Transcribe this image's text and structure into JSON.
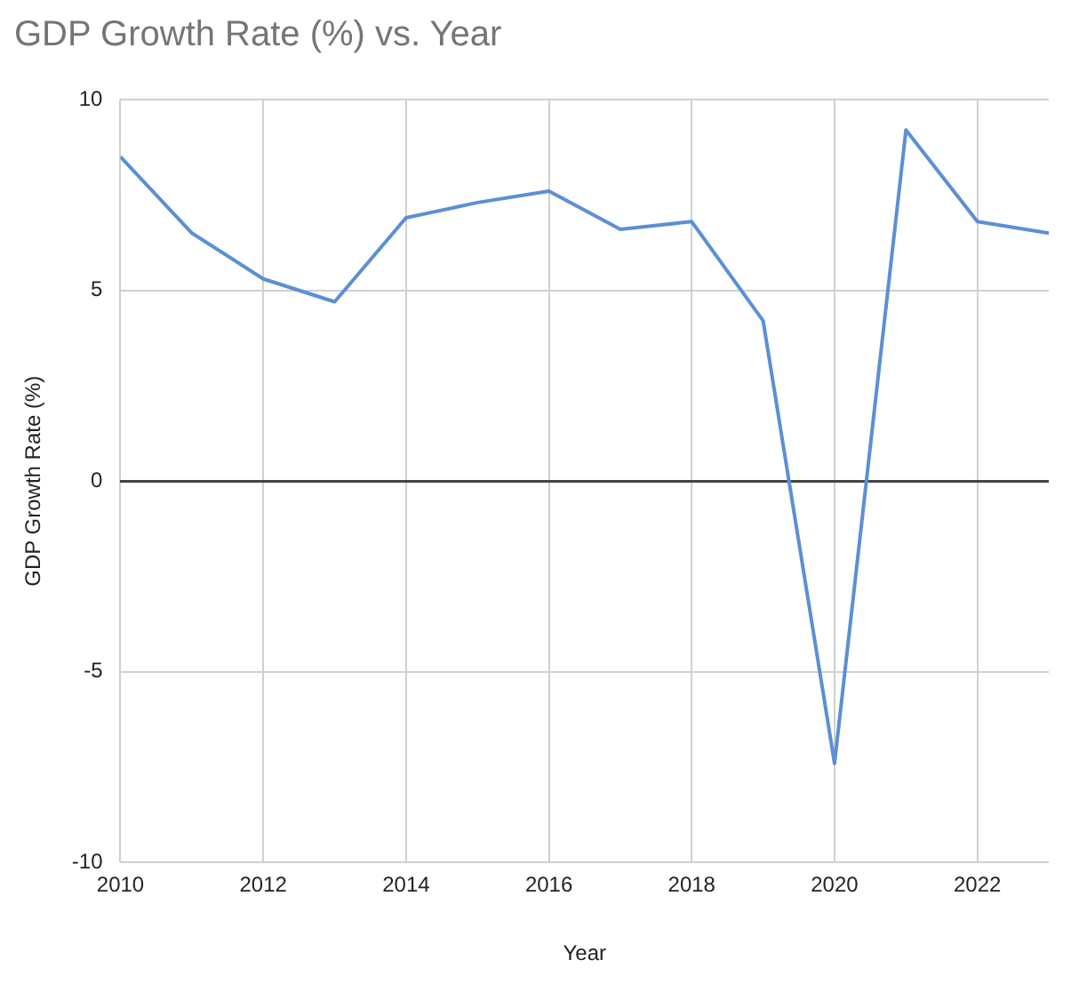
{
  "chart_data": {
    "type": "line",
    "title": "GDP Growth Rate (%) vs. Year",
    "xlabel": "Year",
    "ylabel": "GDP Growth Rate (%)",
    "x": [
      2010,
      2011,
      2012,
      2013,
      2014,
      2015,
      2016,
      2017,
      2018,
      2019,
      2020,
      2021,
      2022,
      2023
    ],
    "series": [
      {
        "color": "#5b8fd6",
        "values": [
          8.5,
          6.5,
          5.3,
          4.7,
          6.9,
          7.3,
          7.6,
          6.6,
          6.8,
          4.2,
          -7.4,
          9.2,
          6.8,
          6.5
        ]
      }
    ],
    "xlim": [
      2010,
      2023
    ],
    "xticks": [
      2010,
      2012,
      2014,
      2016,
      2018,
      2020,
      2022
    ],
    "ylim": [
      -10,
      10
    ],
    "yticks": [
      -10,
      -5,
      0,
      5,
      10
    ],
    "grid": true,
    "legend": false,
    "marker": "none",
    "line_style": "solid"
  }
}
